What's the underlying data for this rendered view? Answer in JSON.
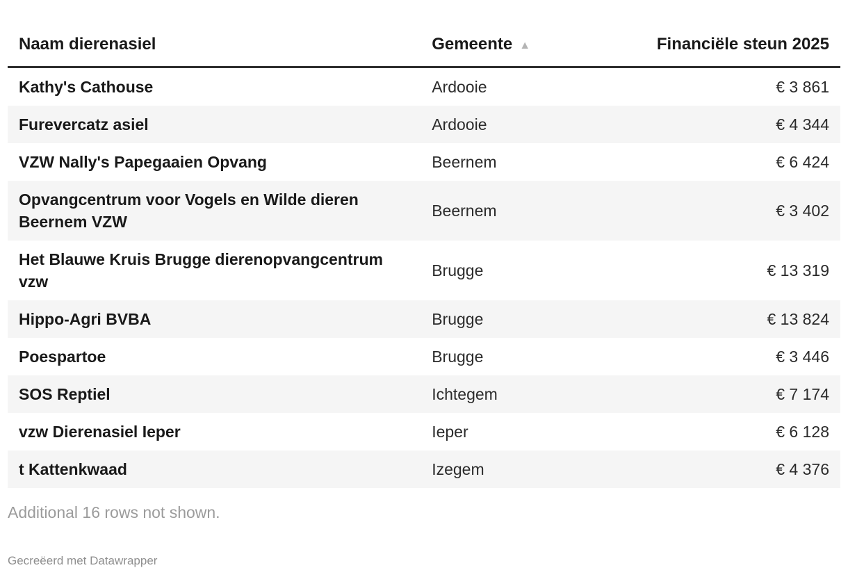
{
  "chart_data": {
    "type": "table",
    "columns": [
      {
        "label": "Naam dierenasiel",
        "align": "left"
      },
      {
        "label": "Gemeente",
        "align": "left",
        "sorted": "ascending"
      },
      {
        "label": "Financiële steun 2025",
        "align": "right"
      }
    ],
    "rows": [
      {
        "naam": "Kathy's Cathouse",
        "gemeente": "Ardooie",
        "steun": "€ 3 861",
        "steun_value": 3861
      },
      {
        "naam": "Furevercatz asiel",
        "gemeente": "Ardooie",
        "steun": "€ 4 344",
        "steun_value": 4344
      },
      {
        "naam": "VZW Nally's Papegaaien Opvang",
        "gemeente": "Beernem",
        "steun": "€ 6 424",
        "steun_value": 6424
      },
      {
        "naam": "Opvangcentrum voor Vogels en Wilde dieren Beernem VZW",
        "gemeente": "Beernem",
        "steun": "€ 3 402",
        "steun_value": 3402
      },
      {
        "naam": "Het Blauwe Kruis Brugge dierenopvangcentrum vzw",
        "gemeente": "Brugge",
        "steun": "€ 13 319",
        "steun_value": 13319
      },
      {
        "naam": "Hippo-Agri BVBA",
        "gemeente": "Brugge",
        "steun": "€ 13 824",
        "steun_value": 13824
      },
      {
        "naam": "Poespartoe",
        "gemeente": "Brugge",
        "steun": "€ 3 446",
        "steun_value": 3446
      },
      {
        "naam": "SOS Reptiel",
        "gemeente": "Ichtegem",
        "steun": "€ 7 174",
        "steun_value": 7174
      },
      {
        "naam": "vzw Dierenasiel Ieper",
        "gemeente": "Ieper",
        "steun": "€ 6 128",
        "steun_value": 6128
      },
      {
        "naam": "t Kattenkwaad",
        "gemeente": "Izegem",
        "steun": "€ 4 376",
        "steun_value": 4376
      }
    ],
    "note": "Additional 16 rows not shown."
  },
  "table": {
    "sort_icon": "▲"
  },
  "footer": {
    "note": "Additional 16 rows not shown.",
    "credit": "Gecreëerd met Datawrapper"
  },
  "colors": {
    "stripe": "#f5f5f5",
    "header_rule": "#2e2e2e",
    "sort_arrow": "#b4b4b4",
    "muted_note": "#9b9b9b",
    "credit_text": "#8f8f8f"
  }
}
